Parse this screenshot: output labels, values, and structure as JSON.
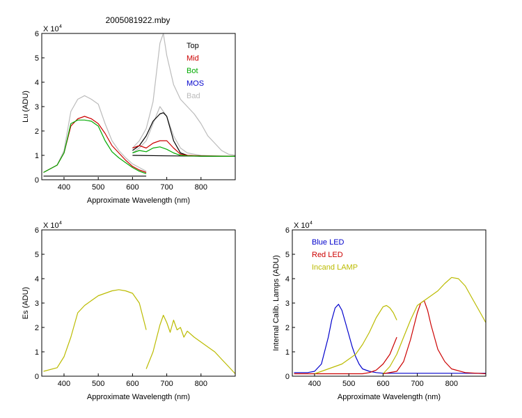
{
  "figure_title": "2005081922.mby",
  "chart_data": [
    {
      "type": "line",
      "id": "lu",
      "ylabel": "Lu (ADU)",
      "xlabel": "Approximate Wavelength (nm)",
      "y_multiplier": "X 10",
      "y_exponent": "4",
      "xlim": [
        335,
        900
      ],
      "ylim": [
        0,
        6
      ],
      "x_ticks": [
        400,
        500,
        600,
        700,
        800
      ],
      "y_ticks": [
        0,
        1,
        2,
        3,
        4,
        5,
        6
      ],
      "legend_position": "top-right",
      "legend": [
        {
          "name": "Top",
          "color": "#000000"
        },
        {
          "name": "Mid",
          "color": "#cc0000"
        },
        {
          "name": "Bot",
          "color": "#00aa00"
        },
        {
          "name": "MOS",
          "color": "#0000cc"
        },
        {
          "name": "Bad",
          "color": "#bbbbbb"
        }
      ],
      "series": [
        {
          "group": "Bad",
          "color": "#bbbbbb",
          "x": [
            340,
            380,
            400,
            420,
            440,
            460,
            480,
            500,
            520,
            540,
            560,
            580,
            600,
            620,
            640
          ],
          "y": [
            0.3,
            0.6,
            1.2,
            2.8,
            3.3,
            3.45,
            3.3,
            3.1,
            2.3,
            1.6,
            1.2,
            0.9,
            0.65,
            0.5,
            0.35
          ]
        },
        {
          "group": "Bad",
          "color": "#bbbbbb",
          "x": [
            600,
            620,
            640,
            660,
            680,
            690,
            700,
            720,
            740,
            760,
            780,
            800,
            820,
            840,
            860,
            880,
            900
          ],
          "y": [
            1.3,
            1.6,
            2.1,
            3.2,
            5.6,
            6.0,
            5.1,
            3.9,
            3.3,
            3.0,
            2.7,
            2.3,
            1.8,
            1.5,
            1.2,
            1.05,
            1.0
          ]
        },
        {
          "group": "Bad",
          "color": "#bbbbbb",
          "x": [
            600,
            620,
            640,
            660,
            680,
            700,
            720,
            740,
            760,
            780,
            800,
            840,
            880,
            900
          ],
          "y": [
            1.1,
            1.3,
            1.6,
            2.3,
            3.0,
            2.6,
            1.8,
            1.3,
            1.1,
            1.05,
            1.0,
            0.98,
            0.97,
            0.96
          ]
        },
        {
          "group": "Top",
          "color": "#000000",
          "x": [
            600,
            620,
            640,
            660,
            680,
            690,
            700,
            720,
            740,
            760,
            780,
            800,
            900
          ],
          "y": [
            1.2,
            1.4,
            1.8,
            2.4,
            2.7,
            2.75,
            2.6,
            1.6,
            1.1,
            1.0,
            0.98,
            0.97,
            0.96
          ]
        },
        {
          "group": "Top",
          "color": "#000000",
          "x": [
            340,
            400,
            500,
            600,
            640
          ],
          "y": [
            0.15,
            0.15,
            0.15,
            0.15,
            0.15
          ]
        },
        {
          "group": "Top",
          "color": "#000000",
          "x": [
            600,
            700,
            800,
            900
          ],
          "y": [
            1.0,
            0.98,
            0.97,
            0.96
          ]
        },
        {
          "group": "Mid",
          "color": "#cc0000",
          "x": [
            340,
            380,
            400,
            420,
            440,
            460,
            480,
            500,
            520,
            540,
            560,
            580,
            600,
            620,
            640
          ],
          "y": [
            0.3,
            0.6,
            1.1,
            2.2,
            2.5,
            2.6,
            2.5,
            2.3,
            1.9,
            1.4,
            1.1,
            0.8,
            0.55,
            0.4,
            0.3
          ]
        },
        {
          "group": "Mid",
          "color": "#cc0000",
          "x": [
            600,
            620,
            640,
            660,
            680,
            700,
            720,
            740,
            760,
            800,
            900
          ],
          "y": [
            1.3,
            1.4,
            1.3,
            1.5,
            1.6,
            1.6,
            1.3,
            1.05,
            1.0,
            0.98,
            0.96
          ]
        },
        {
          "group": "Bot",
          "color": "#00aa00",
          "x": [
            340,
            380,
            400,
            420,
            440,
            460,
            480,
            500,
            520,
            540,
            560,
            580,
            600,
            620,
            640
          ],
          "y": [
            0.3,
            0.6,
            1.1,
            2.3,
            2.45,
            2.45,
            2.4,
            2.2,
            1.6,
            1.15,
            0.9,
            0.7,
            0.5,
            0.35,
            0.25
          ]
        },
        {
          "group": "Bot",
          "color": "#00aa00",
          "x": [
            600,
            620,
            640,
            660,
            680,
            700,
            720,
            740,
            760,
            800,
            900
          ],
          "y": [
            1.1,
            1.2,
            1.15,
            1.3,
            1.35,
            1.25,
            1.1,
            1.0,
            0.98,
            0.97,
            0.96
          ]
        }
      ]
    },
    {
      "type": "line",
      "id": "es",
      "ylabel": "Es (ADU)",
      "xlabel": "Approximate Wavelength (nm)",
      "y_multiplier": "X 10",
      "y_exponent": "4",
      "xlim": [
        335,
        900
      ],
      "ylim": [
        0,
        6
      ],
      "x_ticks": [
        400,
        500,
        600,
        700,
        800
      ],
      "y_ticks": [
        0,
        1,
        2,
        3,
        4,
        5,
        6
      ],
      "series": [
        {
          "color": "#bbbb00",
          "x": [
            340,
            380,
            400,
            420,
            440,
            460,
            480,
            500,
            520,
            540,
            560,
            580,
            600,
            620,
            640
          ],
          "y": [
            0.2,
            0.35,
            0.8,
            1.6,
            2.6,
            2.9,
            3.1,
            3.3,
            3.4,
            3.5,
            3.55,
            3.5,
            3.4,
            3.0,
            1.9
          ]
        },
        {
          "color": "#bbbb00",
          "x": [
            640,
            660,
            680,
            690,
            700,
            710,
            720,
            730,
            740,
            750,
            760,
            780,
            800,
            820,
            840,
            860,
            880,
            900
          ],
          "y": [
            0.3,
            1.0,
            2.1,
            2.5,
            2.2,
            1.8,
            2.3,
            1.9,
            2.0,
            1.6,
            1.85,
            1.6,
            1.4,
            1.2,
            1.0,
            0.7,
            0.4,
            0.1
          ]
        }
      ]
    },
    {
      "type": "line",
      "id": "lamps",
      "ylabel": "Internal Calib. Lamps (ADU)",
      "xlabel": "Approximate Wavelength (nm)",
      "y_multiplier": "X 10",
      "y_exponent": "4",
      "xlim": [
        335,
        900
      ],
      "ylim": [
        0,
        6
      ],
      "x_ticks": [
        400,
        500,
        600,
        700,
        800
      ],
      "y_ticks": [
        0,
        1,
        2,
        3,
        4,
        5,
        6
      ],
      "legend_position": "top-left",
      "legend": [
        {
          "name": "Blue LED",
          "color": "#0000cc"
        },
        {
          "name": "Red LED",
          "color": "#cc0000"
        },
        {
          "name": "Incand LAMP",
          "color": "#bbbb00"
        }
      ],
      "series": [
        {
          "group": "Blue LED",
          "color": "#0000cc",
          "x": [
            340,
            380,
            400,
            420,
            440,
            450,
            460,
            470,
            480,
            490,
            500,
            510,
            520,
            530,
            540,
            560,
            580,
            600,
            640,
            700,
            800,
            900
          ],
          "y": [
            0.15,
            0.15,
            0.2,
            0.5,
            1.6,
            2.3,
            2.8,
            2.95,
            2.7,
            2.2,
            1.7,
            1.2,
            0.8,
            0.5,
            0.3,
            0.2,
            0.15,
            0.12,
            0.12,
            0.12,
            0.12,
            0.12
          ]
        },
        {
          "group": "Red LED",
          "color": "#cc0000",
          "x": [
            340,
            400,
            500,
            540,
            560,
            580,
            600,
            620,
            640
          ],
          "y": [
            0.1,
            0.1,
            0.1,
            0.1,
            0.15,
            0.25,
            0.5,
            0.9,
            1.6
          ]
        },
        {
          "group": "Red LED",
          "color": "#cc0000",
          "x": [
            600,
            640,
            660,
            680,
            700,
            710,
            720,
            730,
            740,
            760,
            780,
            800,
            840,
            900
          ],
          "y": [
            0.1,
            0.2,
            0.6,
            1.5,
            2.6,
            3.0,
            3.1,
            2.7,
            2.1,
            1.1,
            0.6,
            0.3,
            0.15,
            0.1
          ]
        },
        {
          "group": "Incand LAMP",
          "color": "#bbbb00",
          "x": [
            400,
            440,
            480,
            500,
            520,
            540,
            560,
            580,
            600,
            610,
            620,
            630,
            640
          ],
          "y": [
            0.1,
            0.3,
            0.5,
            0.7,
            0.9,
            1.3,
            1.8,
            2.4,
            2.85,
            2.9,
            2.8,
            2.6,
            2.3
          ]
        },
        {
          "group": "Incand LAMP",
          "color": "#bbbb00",
          "x": [
            600,
            620,
            640,
            660,
            680,
            700,
            720,
            740,
            760,
            780,
            800,
            820,
            840,
            860,
            880,
            900
          ],
          "y": [
            0.1,
            0.4,
            0.9,
            1.6,
            2.3,
            2.9,
            3.1,
            3.3,
            3.5,
            3.8,
            4.05,
            4.0,
            3.7,
            3.2,
            2.7,
            2.2
          ]
        }
      ]
    }
  ]
}
